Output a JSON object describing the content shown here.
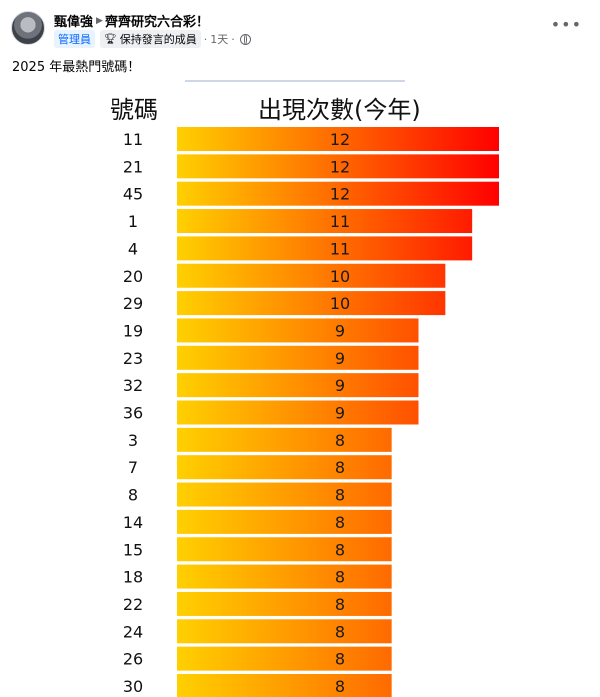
{
  "post": {
    "author": "甄偉強",
    "group": "齊齊研究六合彩！",
    "admin_badge": "管理員",
    "member_badge": "保持發言的成員",
    "time": "1天",
    "text": "2025 年最熱門號碼！",
    "more_icon": "more-horizontal-icon",
    "trophy_icon": "trophy-icon",
    "globe_icon": "globe-icon"
  },
  "chart_data": {
    "type": "bar",
    "orientation": "horizontal",
    "column_headers": {
      "category": "號碼",
      "value": "出現次數(今年)"
    },
    "categories": [
      "11",
      "21",
      "45",
      "1",
      "4",
      "20",
      "29",
      "19",
      "23",
      "32",
      "36",
      "3",
      "7",
      "8",
      "14",
      "15",
      "18",
      "22",
      "24",
      "26",
      "30"
    ],
    "values": [
      12,
      12,
      12,
      11,
      11,
      10,
      10,
      9,
      9,
      9,
      9,
      8,
      8,
      8,
      8,
      8,
      8,
      8,
      8,
      8,
      8
    ],
    "xlim": [
      0,
      12
    ],
    "grid": false,
    "legend": "none",
    "colors": {
      "bar_start": "#ffd000",
      "bar_end_max": "#ff0000",
      "bar_end_min": "#ff6a00"
    }
  }
}
